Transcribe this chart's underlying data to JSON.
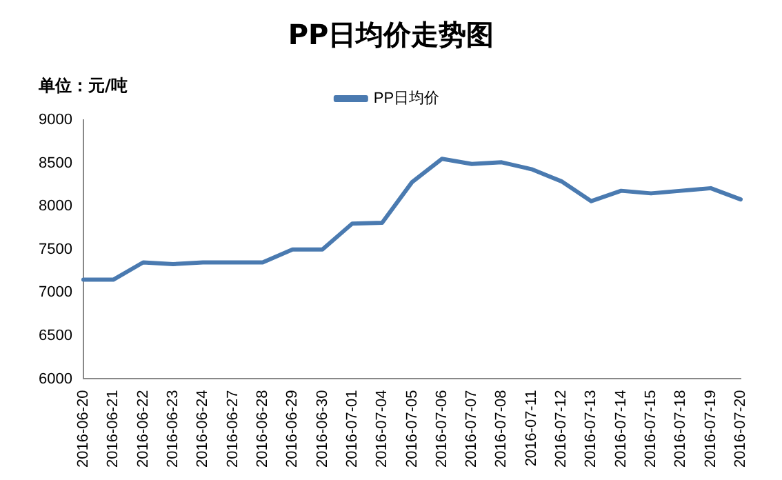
{
  "chart_data": {
    "type": "line",
    "title": "PP日均价走势图",
    "ylabel": "单位：元/吨",
    "legend": "top",
    "grid": false,
    "marker": "none",
    "line_style": "solid",
    "categories": [
      "2016-06-20",
      "2016-06-21",
      "2016-06-22",
      "2016-06-23",
      "2016-06-24",
      "2016-06-27",
      "2016-06-28",
      "2016-06-29",
      "2016-06-30",
      "2016-07-01",
      "2016-07-04",
      "2016-07-05",
      "2016-07-06",
      "2016-07-07",
      "2016-07-08",
      "2016-07-11",
      "2016-07-12",
      "2016-07-13",
      "2016-07-14",
      "2016-07-15",
      "2016-07-18",
      "2016-07-19",
      "2016-07-20"
    ],
    "series": [
      {
        "name": "PP日均价",
        "color": "#4a7ab0",
        "values": [
          7150,
          7150,
          7350,
          7330,
          7350,
          7350,
          7350,
          7500,
          7500,
          7800,
          7810,
          8280,
          8550,
          8490,
          8510,
          8430,
          8290,
          8060,
          8180,
          8150,
          8180,
          8210,
          8080
        ]
      }
    ],
    "ylim": [
      6000,
      9000
    ],
    "yticks": [
      6000,
      6500,
      7000,
      7500,
      8000,
      8500,
      9000
    ]
  }
}
